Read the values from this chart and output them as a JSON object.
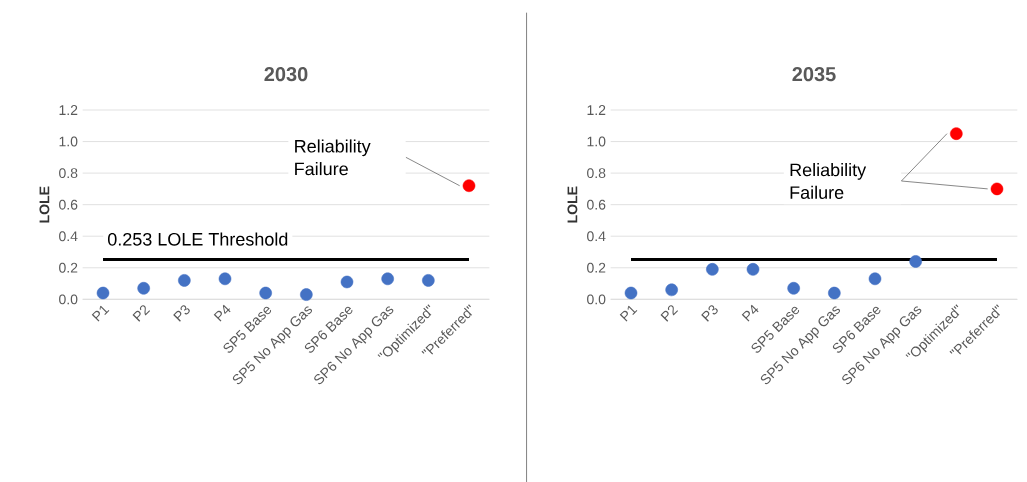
{
  "chart_data": [
    {
      "type": "scatter",
      "title": "2030",
      "ylabel": "LOLE",
      "categories": [
        "P1",
        "P2",
        "P3",
        "P4",
        "SP5 Base",
        "SP5 No App Gas",
        "SP6 Base",
        "SP6 No App Gas",
        "\"Optimized\"",
        "\"Preferred\""
      ],
      "values": [
        0.04,
        0.07,
        0.12,
        0.13,
        0.04,
        0.03,
        0.11,
        0.13,
        0.12,
        0.72
      ],
      "colors": [
        "#4472c4",
        "#4472c4",
        "#4472c4",
        "#4472c4",
        "#4472c4",
        "#4472c4",
        "#4472c4",
        "#4472c4",
        "#4472c4",
        "#ff0000"
      ],
      "ylim": [
        0,
        1.2
      ],
      "yticks": [
        {
          "value": 0,
          "label": "0.0"
        },
        {
          "value": 0.2,
          "label": "0.2"
        },
        {
          "value": 0.4,
          "label": "0.4"
        },
        {
          "value": 0.6,
          "label": "0.6"
        },
        {
          "value": 0.8,
          "label": "0.8"
        },
        {
          "value": 1.0,
          "label": "1.0"
        },
        {
          "value": 1.2,
          "label": "1.2"
        }
      ],
      "grid": "y",
      "marker": "circle",
      "ref_lines": [
        {
          "axis": "y",
          "value": 0.253,
          "label": "0.253 LOLE Threshold",
          "color": "#000000"
        }
      ],
      "annotations": [
        "Reliability Failure"
      ]
    },
    {
      "type": "scatter",
      "title": "2035",
      "ylabel": "LOLE",
      "categories": [
        "P1",
        "P2",
        "P3",
        "P4",
        "SP5 Base",
        "SP5 No App Gas",
        "SP6 Base",
        "SP6 No App Gas",
        "\"Optimized\"",
        "\"Preferred\""
      ],
      "values": [
        0.04,
        0.06,
        0.19,
        0.19,
        0.07,
        0.04,
        0.13,
        0.24,
        1.05,
        0.7
      ],
      "colors": [
        "#4472c4",
        "#4472c4",
        "#4472c4",
        "#4472c4",
        "#4472c4",
        "#4472c4",
        "#4472c4",
        "#4472c4",
        "#ff0000",
        "#ff0000"
      ],
      "ylim": [
        0,
        1.2
      ],
      "yticks": [
        {
          "value": 0,
          "label": "0.0"
        },
        {
          "value": 0.2,
          "label": "0.2"
        },
        {
          "value": 0.4,
          "label": "0.4"
        },
        {
          "value": 0.6,
          "label": "0.6"
        },
        {
          "value": 0.8,
          "label": "0.8"
        },
        {
          "value": 1.0,
          "label": "1.0"
        },
        {
          "value": 1.2,
          "label": "1.2"
        }
      ],
      "grid": "y",
      "marker": "circle",
      "ref_lines": [
        {
          "axis": "y",
          "value": 0.253,
          "color": "#000000"
        }
      ],
      "annotations": [
        "Reliability Failure"
      ]
    }
  ]
}
